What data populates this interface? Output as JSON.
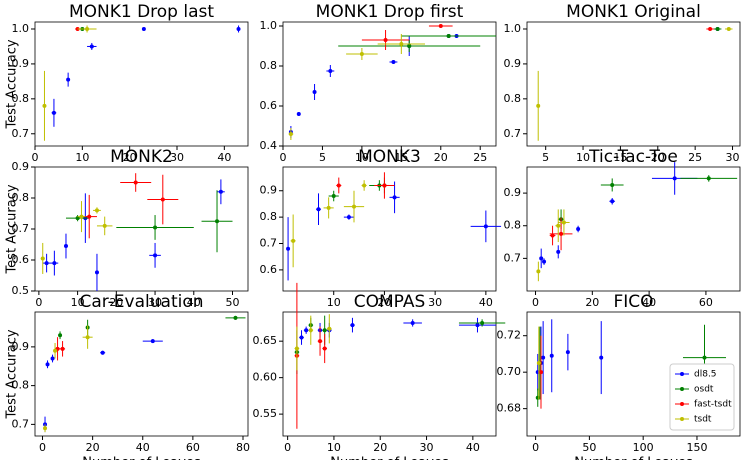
{
  "chart_data": [
    {
      "type": "scatter",
      "title": "MONK1 Drop last",
      "ylabel": "Test Accuracy",
      "xlim": [
        0,
        45
      ],
      "xticks": [
        0,
        10,
        20,
        30,
        40
      ],
      "ylim": [
        0.665,
        1.02
      ],
      "yticks": [
        0.7,
        0.8,
        0.9,
        {
          "value": 1.0,
          "label": "1.0"
        }
      ],
      "series": [
        {
          "color": "#0000ff",
          "x": [
            4,
            7,
            12,
            23,
            43
          ],
          "values": [
            0.76,
            0.855,
            0.95,
            1.0,
            1.0
          ],
          "x_err": [
            0.5,
            0.3,
            1,
            0,
            0.3
          ],
          "y_err": [
            0.04,
            0.02,
            0.01,
            0,
            0.01
          ]
        },
        {
          "color": "#008000",
          "x": [
            10
          ],
          "values": [
            1.0
          ],
          "x_err": [
            1
          ],
          "y_err": [
            0
          ]
        },
        {
          "color": "#ff0000",
          "x": [
            9
          ],
          "values": [
            1.0
          ],
          "x_err": [
            0.5
          ],
          "y_err": [
            0
          ]
        },
        {
          "color": "#bfbf00",
          "x": [
            2,
            11
          ],
          "values": [
            0.78,
            1.0
          ],
          "x_err": [
            0.3,
            2
          ],
          "y_err": [
            0.1,
            0.01
          ]
        }
      ]
    },
    {
      "type": "scatter",
      "title": "MONK1 Drop first",
      "xlim": [
        0,
        27
      ],
      "xticks": [
        0,
        5,
        10,
        15,
        20,
        25
      ],
      "ylim": [
        0.4,
        1.02
      ],
      "yticks": [
        0.4,
        0.6,
        0.8,
        {
          "value": 1.0,
          "label": "1.0"
        }
      ],
      "series": [
        {
          "color": "#0000ff",
          "x": [
            1,
            2,
            4,
            6,
            14,
            16,
            21,
            22
          ],
          "values": [
            0.47,
            0.56,
            0.67,
            0.775,
            0.82,
            0.9,
            0.95,
            0.95
          ],
          "x_err": [
            0,
            0,
            0,
            0.5,
            0.5,
            1,
            1,
            0.5
          ],
          "y_err": [
            0.03,
            0.01,
            0.04,
            0.03,
            0.01,
            0.05,
            0.01,
            0.01
          ]
        },
        {
          "color": "#008000",
          "x": [
            16,
            21
          ],
          "values": [
            0.9,
            0.95
          ],
          "x_err": [
            9,
            6
          ],
          "y_err": [
            0.03,
            0.01
          ]
        },
        {
          "color": "#ff0000",
          "x": [
            13,
            20
          ],
          "values": [
            0.93,
            1.0
          ],
          "x_err": [
            3,
            1.5
          ],
          "y_err": [
            0.05,
            0
          ]
        },
        {
          "color": "#bfbf00",
          "x": [
            1,
            10,
            15
          ],
          "values": [
            0.46,
            0.86,
            0.91
          ],
          "x_err": [
            0.3,
            2,
            3
          ],
          "y_err": [
            0.03,
            0.03,
            0.05
          ]
        }
      ]
    },
    {
      "type": "scatter",
      "title": "MONK1 Original",
      "xlim": [
        2.5,
        31
      ],
      "xticks": [
        5,
        10,
        15,
        20,
        25,
        30
      ],
      "ylim": [
        0.665,
        1.02
      ],
      "yticks": [
        0.7,
        0.8,
        0.9,
        {
          "value": 1.0,
          "label": "1.0"
        }
      ],
      "series": [
        {
          "color": "#0000ff",
          "x": [
            28
          ],
          "values": [
            1.0
          ],
          "x_err": [
            0.5
          ],
          "y_err": [
            0
          ]
        },
        {
          "color": "#008000",
          "x": [
            28
          ],
          "values": [
            1.0
          ],
          "x_err": [
            0.5
          ],
          "y_err": [
            0
          ]
        },
        {
          "color": "#ff0000",
          "x": [
            27
          ],
          "values": [
            1.0
          ],
          "x_err": [
            0.5
          ],
          "y_err": [
            0
          ]
        },
        {
          "color": "#bfbf00",
          "x": [
            4,
            29.5
          ],
          "values": [
            0.78,
            1.0
          ],
          "x_err": [
            0.2,
            0.5
          ],
          "y_err": [
            0.1,
            0
          ]
        }
      ]
    },
    {
      "type": "scatter",
      "title": "MONK2",
      "ylabel": "Test Accuracy",
      "xlim": [
        -1,
        54
      ],
      "xticks": [
        0,
        10,
        20,
        30,
        40,
        50
      ],
      "ylim": [
        0.5,
        0.9
      ],
      "yticks": [
        0.5,
        0.6,
        0.7,
        0.8,
        0.9
      ],
      "series": [
        {
          "color": "#0000ff",
          "x": [
            2,
            4,
            7,
            12,
            15,
            30,
            47
          ],
          "values": [
            0.59,
            0.59,
            0.645,
            0.735,
            0.56,
            0.615,
            0.82
          ],
          "x_err": [
            1,
            1,
            0.5,
            1,
            0.5,
            1.5,
            1
          ],
          "y_err": [
            0.03,
            0.04,
            0.04,
            0.08,
            0.06,
            0.04,
            0.04
          ]
        },
        {
          "color": "#008000",
          "x": [
            10,
            30,
            46
          ],
          "values": [
            0.735,
            0.705,
            0.725
          ],
          "x_err": [
            3,
            10,
            4
          ],
          "y_err": [
            0.01,
            0.04,
            0.1
          ]
        },
        {
          "color": "#ff0000",
          "x": [
            13,
            25,
            32
          ],
          "values": [
            0.74,
            0.85,
            0.795
          ],
          "x_err": [
            2,
            4,
            4
          ],
          "y_err": [
            0.07,
            0.03,
            0.08
          ]
        },
        {
          "color": "#bfbf00",
          "x": [
            1,
            11,
            15,
            17
          ],
          "values": [
            0.605,
            0.74,
            0.76,
            0.71
          ],
          "x_err": [
            0.5,
            1,
            1,
            2
          ],
          "y_err": [
            0.05,
            0.05,
            0.01,
            0.03
          ]
        }
      ]
    },
    {
      "type": "scatter",
      "title": "MONK3",
      "xlim": [
        0,
        42
      ],
      "xticks": [
        10,
        20,
        30,
        40
      ],
      "ylim": [
        0.52,
        0.99
      ],
      "yticks": [
        0.6,
        0.7,
        0.8,
        0.9
      ],
      "series": [
        {
          "color": "#0000ff",
          "x": [
            1,
            7,
            13,
            22,
            40
          ],
          "values": [
            0.68,
            0.83,
            0.8,
            0.875,
            0.765
          ],
          "x_err": [
            0.3,
            0.5,
            1,
            1,
            3
          ],
          "y_err": [
            0.12,
            0.06,
            0.01,
            0.06,
            0.06
          ]
        },
        {
          "color": "#008000",
          "x": [
            10,
            19,
            20
          ],
          "values": [
            0.88,
            0.92,
            0.92
          ],
          "x_err": [
            1,
            2,
            1
          ],
          "y_err": [
            0.02,
            0.02,
            0.03
          ]
        },
        {
          "color": "#ff0000",
          "x": [
            11,
            20
          ],
          "values": [
            0.92,
            0.92
          ],
          "x_err": [
            0.5,
            2
          ],
          "y_err": [
            0.03,
            0.05
          ]
        },
        {
          "color": "#bfbf00",
          "x": [
            2,
            9,
            14,
            16
          ],
          "values": [
            0.71,
            0.835,
            0.84,
            0.92
          ],
          "x_err": [
            0.5,
            1,
            2,
            0.5
          ],
          "y_err": [
            0.1,
            0.04,
            0.06,
            0.02
          ]
        }
      ]
    },
    {
      "type": "scatter",
      "title": "Tic-Tac-Toe",
      "xlim": [
        -3,
        72
      ],
      "xticks": [
        0,
        20,
        40,
        60
      ],
      "ylim": [
        0.6,
        0.98
      ],
      "yticks": [
        0.7,
        0.8,
        0.9
      ],
      "series": [
        {
          "color": "#0000ff",
          "x": [
            2,
            3,
            8,
            15,
            27,
            49
          ],
          "values": [
            0.7,
            0.69,
            0.72,
            0.79,
            0.875,
            0.945
          ],
          "x_err": [
            0.5,
            0.5,
            0.5,
            0.5,
            1,
            8
          ],
          "y_err": [
            0.03,
            0.01,
            0.02,
            0.01,
            0.01,
            0.05
          ]
        },
        {
          "color": "#008000",
          "x": [
            9,
            27,
            61
          ],
          "values": [
            0.82,
            0.925,
            0.945
          ],
          "x_err": [
            1,
            4,
            10
          ],
          "y_err": [
            0.03,
            0.02,
            0.01
          ]
        },
        {
          "color": "#ff0000",
          "x": [
            6,
            9
          ],
          "values": [
            0.77,
            0.775
          ],
          "x_err": [
            1,
            4
          ],
          "y_err": [
            0.03,
            0.05
          ]
        },
        {
          "color": "#bfbf00",
          "x": [
            1,
            8,
            10
          ],
          "values": [
            0.66,
            0.8,
            0.81
          ],
          "x_err": [
            0.5,
            1,
            2
          ],
          "y_err": [
            0.03,
            0.05,
            0.04
          ]
        }
      ]
    },
    {
      "type": "scatter",
      "title": "Car-Evaluation",
      "ylabel": "Test Accuracy",
      "xlabel": "Number of Leaves",
      "xlim": [
        -3,
        82
      ],
      "xticks": [
        0,
        20,
        40,
        60,
        80
      ],
      "ylim": [
        0.67,
        0.99
      ],
      "yticks": [
        0.7,
        0.8,
        0.9
      ],
      "series": [
        {
          "color": "#0000ff",
          "x": [
            1,
            2,
            4,
            24,
            44
          ],
          "values": [
            0.7,
            0.855,
            0.87,
            0.885,
            0.915
          ],
          "x_err": [
            0.5,
            0.5,
            0.5,
            1,
            4
          ],
          "y_err": [
            0.02,
            0.01,
            0.01,
            0.005,
            0.005
          ]
        },
        {
          "color": "#008000",
          "x": [
            7,
            18,
            77
          ],
          "values": [
            0.93,
            0.95,
            0.975
          ],
          "x_err": [
            0.5,
            0.5,
            4
          ],
          "y_err": [
            0.01,
            0.02,
            0.005
          ]
        },
        {
          "color": "#ff0000",
          "x": [
            6,
            8
          ],
          "values": [
            0.895,
            0.895
          ],
          "x_err": [
            1,
            1
          ],
          "y_err": [
            0.03,
            0.02
          ]
        },
        {
          "color": "#bfbf00",
          "x": [
            1,
            5,
            18
          ],
          "values": [
            0.69,
            0.89,
            0.925
          ],
          "x_err": [
            0.5,
            0.5,
            2
          ],
          "y_err": [
            0.01,
            0.02,
            0.03
          ]
        }
      ]
    },
    {
      "type": "scatter",
      "title": "COMPAS",
      "xlabel": "Number of Leaves",
      "xlim": [
        -1,
        45
      ],
      "xticks": [
        0,
        10,
        20,
        30,
        40
      ],
      "ylim": [
        0.52,
        0.69
      ],
      "yticks": [
        0.55,
        {
          "value": 0.6,
          "label": "0.60"
        },
        0.65
      ],
      "series": [
        {
          "color": "#0000ff",
          "x": [
            3,
            4,
            7,
            9,
            14,
            27,
            41
          ],
          "values": [
            0.655,
            0.665,
            0.665,
            0.665,
            0.672,
            0.675,
            0.672
          ],
          "x_err": [
            0.5,
            0.5,
            0.5,
            0.5,
            0.5,
            2,
            4
          ],
          "y_err": [
            0.01,
            0.005,
            0.01,
            0.01,
            0.01,
            0.005,
            0.01
          ]
        },
        {
          "color": "#008000",
          "x": [
            2,
            5,
            8,
            42
          ],
          "values": [
            0.635,
            0.672,
            0.665,
            0.675
          ],
          "x_err": [
            0.5,
            0.5,
            0.5,
            5
          ],
          "y_err": [
            0.03,
            0.01,
            0.02,
            0.005
          ]
        },
        {
          "color": "#ff0000",
          "x": [
            2,
            7,
            8
          ],
          "values": [
            0.63,
            0.65,
            0.64
          ],
          "x_err": [
            0.5,
            0.5,
            0.5
          ],
          "y_err": [
            0.1,
            0.02,
            0.02
          ]
        },
        {
          "color": "#bfbf00",
          "x": [
            2,
            5,
            9
          ],
          "values": [
            0.64,
            0.665,
            0.667
          ],
          "x_err": [
            0.5,
            0.5,
            0.5
          ],
          "y_err": [
            0.03,
            0.02,
            0.02
          ]
        }
      ]
    },
    {
      "type": "scatter",
      "title": "FICO",
      "xlabel": "Number of Leaves",
      "legend": "lower right",
      "xlim": [
        -8,
        190
      ],
      "xticks": [
        0,
        50,
        100,
        150
      ],
      "ylim": [
        0.665,
        0.733
      ],
      "yticks": [
        {
          "value": 0.68,
          "label": "0.68"
        },
        {
          "value": 0.7,
          "label": "0.70"
        },
        {
          "value": 0.72,
          "label": "0.72"
        }
      ],
      "series": [
        {
          "name": "dl8.5",
          "color": "#0000ff",
          "x": [
            2,
            5,
            7,
            15,
            30,
            61
          ],
          "values": [
            0.7,
            0.705,
            0.708,
            0.709,
            0.711,
            0.708
          ],
          "x_err": [
            1,
            1,
            1,
            1,
            1,
            1
          ],
          "y_err": [
            0.01,
            0.02,
            0.02,
            0.02,
            0.01,
            0.02
          ]
        },
        {
          "name": "osdt",
          "color": "#008000",
          "x": [
            2,
            4,
            157
          ],
          "values": [
            0.686,
            0.705,
            0.708
          ],
          "x_err": [
            1,
            1,
            20
          ],
          "y_err": [
            0.005,
            0.02,
            0.018
          ]
        },
        {
          "name": "fast-tsdt",
          "color": "#ff0000",
          "x": [
            5
          ],
          "values": [
            0.7
          ],
          "x_err": [
            1
          ],
          "y_err": [
            0.02
          ]
        },
        {
          "name": "tsdt",
          "color": "#bfbf00",
          "x": [
            3
          ],
          "values": [
            0.705
          ],
          "x_err": [
            1
          ],
          "y_err": [
            0.02
          ]
        }
      ]
    }
  ]
}
